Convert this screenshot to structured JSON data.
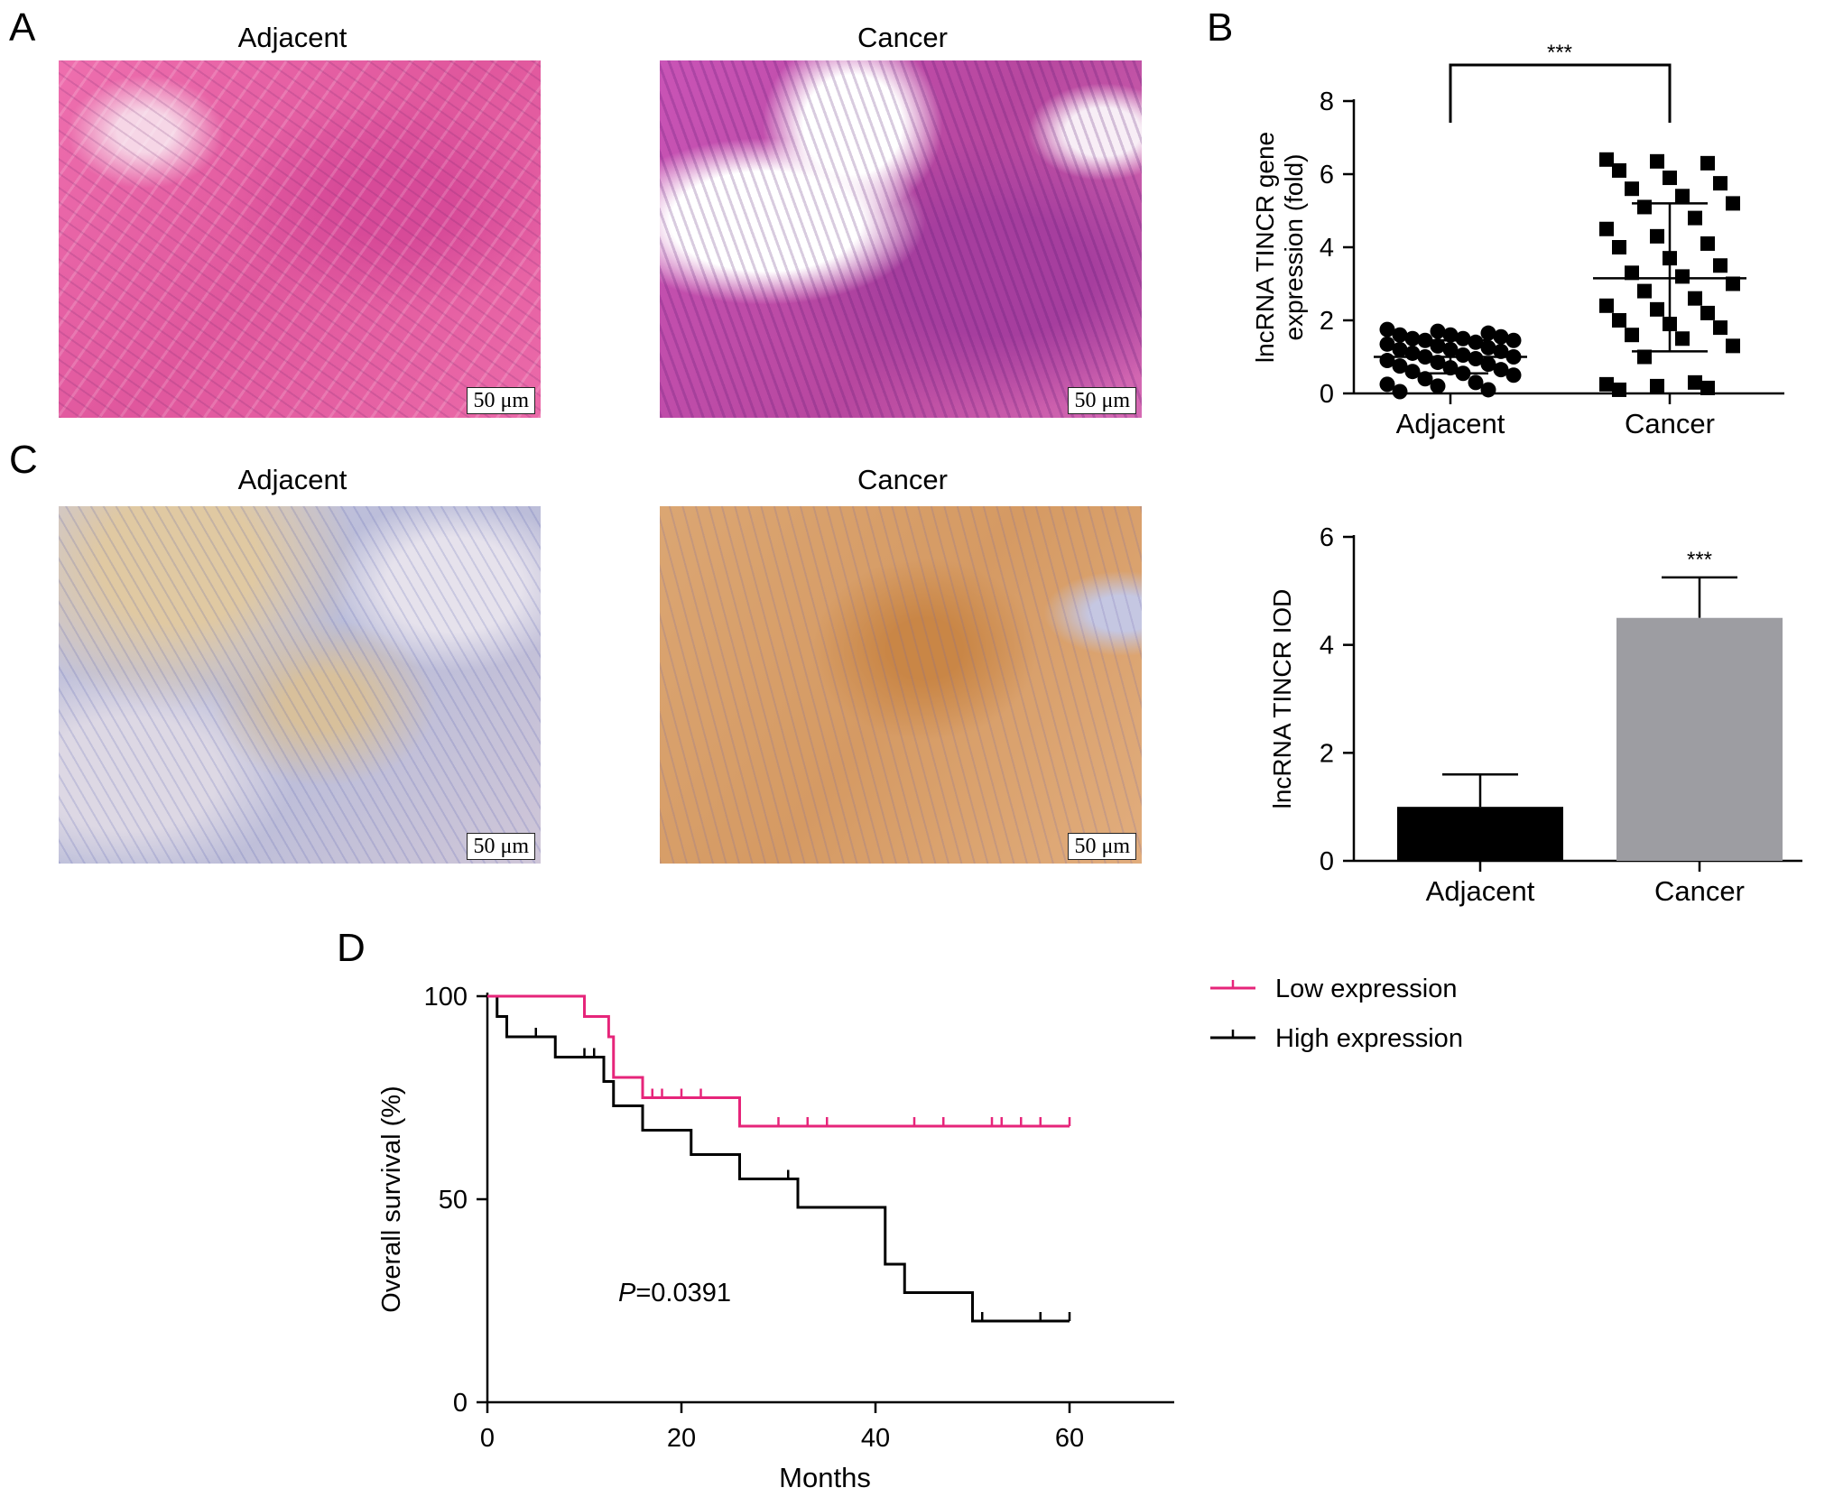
{
  "panels": {
    "A": {
      "letter": "A",
      "captions": [
        "Adjacent",
        "Cancer"
      ],
      "scale_bar": "50 μm",
      "stain_colors": {
        "adjacent": "#e65a9e",
        "cancer": "#c25ab4"
      }
    },
    "C": {
      "letter": "C",
      "captions": [
        "Adjacent",
        "Cancer"
      ],
      "scale_bar": "50 μm",
      "stain_colors": {
        "adjacent": "#c7c3d7",
        "cancer": "#d9a06d"
      }
    },
    "D": {
      "letter": "D"
    }
  },
  "chart_data": [
    {
      "id": "B",
      "letter": "B",
      "type": "scatter",
      "categories": [
        "Adjacent",
        "Cancer"
      ],
      "ylabel": "lncRNA TINCR gene expression (fold)",
      "ylim": [
        0,
        8
      ],
      "yticks": [
        0,
        2,
        4,
        6,
        8
      ],
      "significance": "***",
      "series": [
        {
          "category": "Adjacent",
          "marker": "circle",
          "mean": 1.0,
          "sd_low": 0.55,
          "sd_high": 1.45,
          "values": [
            1.75,
            1.7,
            1.65,
            1.6,
            1.6,
            1.55,
            1.5,
            1.5,
            1.45,
            1.45,
            1.4,
            1.35,
            1.3,
            1.25,
            1.2,
            1.2,
            1.15,
            1.1,
            1.05,
            1.0,
            1.0,
            0.95,
            0.9,
            0.85,
            0.8,
            0.75,
            0.7,
            0.65,
            0.6,
            0.55,
            0.5,
            0.4,
            0.3,
            0.25,
            0.2,
            0.1,
            0.05
          ]
        },
        {
          "category": "Cancer",
          "marker": "square",
          "mean": 3.15,
          "sd_low": 1.15,
          "sd_high": 5.2,
          "values": [
            6.4,
            6.35,
            6.3,
            6.1,
            5.9,
            5.75,
            5.6,
            5.4,
            5.2,
            5.1,
            4.8,
            4.5,
            4.3,
            4.1,
            4.0,
            3.7,
            3.5,
            3.3,
            3.2,
            3.0,
            2.8,
            2.6,
            2.4,
            2.3,
            2.2,
            2.0,
            1.9,
            1.8,
            1.6,
            1.5,
            1.3,
            1.0,
            0.3,
            0.25,
            0.2,
            0.15,
            0.1
          ]
        }
      ]
    },
    {
      "id": "C-bar",
      "type": "bar",
      "categories": [
        "Adjacent",
        "Cancer"
      ],
      "values": [
        1.0,
        4.5
      ],
      "error": [
        0.6,
        0.75
      ],
      "bar_colors": [
        "#000000",
        "#9d9da2"
      ],
      "ylabel": "lncRNA TINCR IOD",
      "ylim": [
        0,
        6
      ],
      "yticks": [
        0,
        2,
        4,
        6
      ],
      "significance": "***"
    },
    {
      "id": "D",
      "type": "line",
      "xlabel": "Months",
      "ylabel": "Overall survival (%)",
      "xlim": [
        0,
        70
      ],
      "ylim": [
        0,
        100
      ],
      "xticks": [
        0,
        20,
        40,
        60
      ],
      "yticks": [
        0,
        50,
        100
      ],
      "annotation_italic": "P",
      "annotation_rest": "=0.0391",
      "legend_position": "top-right",
      "series": [
        {
          "name": "Low expression",
          "color": "#e6257a",
          "steps": [
            [
              0,
              100
            ],
            [
              10,
              95
            ],
            [
              12.5,
              90
            ],
            [
              13,
              80
            ],
            [
              16,
              75
            ],
            [
              26,
              68
            ],
            [
              60,
              68
            ]
          ],
          "censored": [
            17,
            18,
            20,
            22,
            30,
            33,
            35,
            44,
            47,
            52,
            53,
            55,
            57,
            60
          ]
        },
        {
          "name": "High expression",
          "color": "#000000",
          "steps": [
            [
              0,
              100
            ],
            [
              1,
              95
            ],
            [
              2,
              90
            ],
            [
              7,
              85
            ],
            [
              12,
              79
            ],
            [
              13,
              73
            ],
            [
              16,
              67
            ],
            [
              21,
              61
            ],
            [
              26,
              55
            ],
            [
              32,
              48
            ],
            [
              41,
              34
            ],
            [
              43,
              27
            ],
            [
              50,
              20
            ],
            [
              60,
              20
            ]
          ],
          "censored": [
            5,
            10,
            11,
            31,
            51,
            57,
            60
          ]
        }
      ]
    }
  ]
}
